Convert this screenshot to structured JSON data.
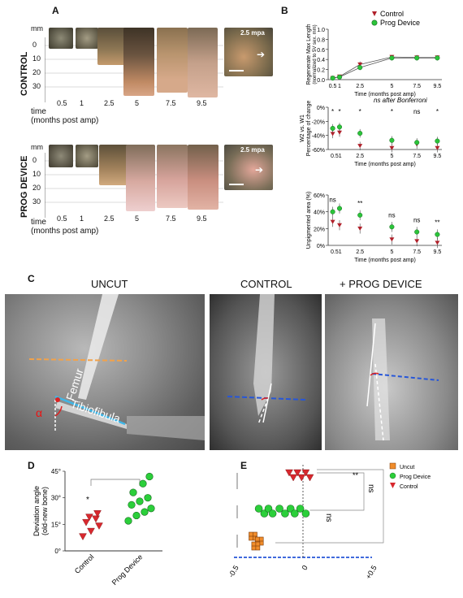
{
  "panel_a": {
    "label": "A",
    "control_label": "CONTROL",
    "prog_label": "PROG DEVICE",
    "mm_unit": "mm",
    "yticks": [
      "0",
      "10",
      "20",
      "30"
    ],
    "times": [
      "0.5",
      "1",
      "2.5",
      "5",
      "7.5",
      "9.5"
    ],
    "time_label": "time",
    "time_sub": "(months post amp)",
    "control_mpa": "2.5 mpa",
    "prog_mpa": "2.5 mpa"
  },
  "panel_b": {
    "label": "B",
    "legend_control": "Control",
    "legend_prog": "Prog Device",
    "ns_note": "ns after Bonferroni",
    "xlabel": "Time (months post amp)",
    "colors": {
      "control": "#b0202a",
      "prog": "#2bc43a"
    }
  },
  "panel_c": {
    "label": "C",
    "title_uncut": "UNCUT",
    "title_control": "CONTROL",
    "title_prog": "+ PROG DEVICE",
    "femur": "Femur",
    "tibiofibula": "Tibiofibula",
    "alpha": "α"
  },
  "panel_d": {
    "label": "D",
    "ylabel": "Deviation angle\n(old-new bone)",
    "star": "*"
  },
  "panel_e": {
    "label": "E",
    "legend": [
      "Uncut",
      "Prog Device",
      "Control"
    ],
    "sig_top": "**",
    "ns1": "ns",
    "ns2": "ns"
  },
  "chart_data": [
    {
      "type": "line",
      "ylabel": "Regenerate Max Length\n(normalized to 5V sex. mm)",
      "xlabel": "Time (months post amp)",
      "x": [
        0.5,
        1,
        2.5,
        5,
        7.5,
        9.5
      ],
      "xticks": [
        "0.5",
        "1",
        "2.5",
        "5",
        "7.5",
        "9.5"
      ],
      "ylim": [
        0,
        1.0
      ],
      "yticks": [
        "0.0",
        "0.2",
        "0.4",
        "0.6",
        "0.8",
        "1.0"
      ],
      "series": [
        {
          "name": "Control",
          "values": [
            0.03,
            0.06,
            0.3,
            0.45,
            0.44,
            0.44
          ],
          "err": [
            0.01,
            0.02,
            0.06,
            0.04,
            0.05,
            0.04
          ]
        },
        {
          "name": "Prog Device",
          "values": [
            0.03,
            0.05,
            0.24,
            0.43,
            0.43,
            0.43
          ],
          "err": [
            0.01,
            0.02,
            0.05,
            0.05,
            0.05,
            0.05
          ]
        }
      ]
    },
    {
      "type": "scatter",
      "ylabel": "Percentage of change",
      "ylabel_sub": "W2 vs. W1",
      "xlabel": "Time (months post amp)",
      "x": [
        0.5,
        1,
        2.5,
        5,
        7.5,
        9.5
      ],
      "xticks": [
        "0.51",
        "2.5",
        "5",
        "7.5",
        "9.5"
      ],
      "ylim": [
        -60,
        0
      ],
      "yticks": [
        "0%",
        "-20%",
        "-40%",
        "-60%"
      ],
      "annotations": [
        "*",
        "*",
        "*",
        "*",
        "ns",
        "*"
      ],
      "series": [
        {
          "name": "Control",
          "values": [
            -38,
            -36,
            -55,
            -58,
            -53,
            -58
          ]
        },
        {
          "name": "Prog Device",
          "values": [
            -30,
            -28,
            -37,
            -47,
            -50,
            -48
          ]
        }
      ]
    },
    {
      "type": "scatter",
      "ylabel": "Unpigmented area (%)",
      "xlabel": "Time (months post amp)",
      "x": [
        0.5,
        1,
        2.5,
        5,
        7.5,
        9.5
      ],
      "xticks": [
        "0.51",
        "2.5",
        "5",
        "7.5",
        "9.5"
      ],
      "ylim": [
        0,
        60
      ],
      "yticks": [
        "0%",
        "20%",
        "40%",
        "60%"
      ],
      "annotations": [
        "ns",
        "",
        "**",
        "ns",
        "ns",
        "**"
      ],
      "series": [
        {
          "name": "Control",
          "values": [
            28,
            24,
            20,
            7,
            5,
            3
          ]
        },
        {
          "name": "Prog Device",
          "values": [
            40,
            44,
            36,
            22,
            16,
            13
          ]
        }
      ]
    },
    {
      "type": "scatter",
      "ylabel": "Deviation angle (old-new bone)",
      "categories": [
        "Control",
        "Prog Device"
      ],
      "ylim": [
        0,
        45
      ],
      "yticks": [
        "0°",
        "15°",
        "30°",
        "45°"
      ],
      "series": [
        {
          "name": "Control",
          "values": [
            8,
            11,
            14,
            16,
            18,
            19,
            21
          ]
        },
        {
          "name": "Prog Device",
          "values": [
            17,
            20,
            22,
            24,
            26,
            28,
            30,
            33,
            38,
            42
          ]
        }
      ]
    },
    {
      "type": "scatter",
      "xlim": [
        -0.5,
        0.5
      ],
      "xticks": [
        "-0.5",
        "0",
        "+0.5"
      ],
      "series": [
        {
          "name": "Uncut",
          "values": [
            -0.35,
            -0.34,
            -0.33
          ]
        },
        {
          "name": "Prog Device",
          "values": [
            -0.32,
            -0.28,
            -0.25,
            -0.22,
            -0.17,
            -0.13,
            -0.09,
            -0.06,
            -0.02,
            0.02
          ]
        },
        {
          "name": "Control",
          "values": [
            -0.1,
            -0.07,
            -0.04,
            -0.01,
            0.02,
            0.05
          ]
        }
      ]
    }
  ]
}
